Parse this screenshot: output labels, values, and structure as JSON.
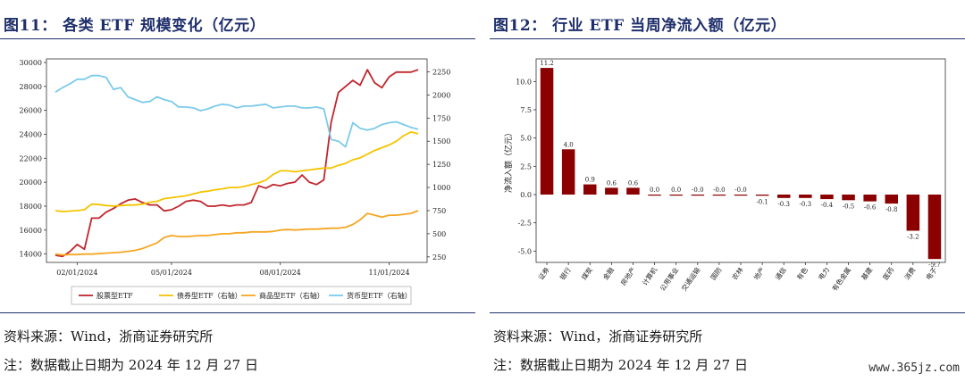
{
  "left": {
    "title": "图11：  各类 ETF 规模变化（亿元）",
    "source": "资料来源：Wind，浙商证券研究所",
    "note": "注：数据截止日期为 2024 年 12 月 27 日",
    "chart_data": {
      "type": "line",
      "title": "各类 ETF 规模变化（亿元）",
      "x_tick_labels": [
        "02/01/2024",
        "05/01/2024",
        "08/01/2024",
        "11/01/2024"
      ],
      "x_tick_index": [
        3,
        16,
        31,
        46
      ],
      "y_left_ticks": [
        14000,
        16000,
        18000,
        20000,
        22000,
        24000,
        26000,
        28000,
        30000
      ],
      "y_left_lim": [
        13300,
        30300
      ],
      "y_right_ticks": [
        250,
        500,
        750,
        1000,
        1250,
        1500,
        1750,
        2000,
        2250
      ],
      "y_right_lim": [
        190,
        2390
      ],
      "legend_position": "bottom",
      "series": [
        {
          "name": "股票型ETF",
          "axis": "left",
          "color": "#c0262d",
          "values": [
            13900,
            13800,
            14200,
            14800,
            14400,
            17000,
            17000,
            17500,
            17800,
            18200,
            18500,
            18600,
            18300,
            18100,
            18100,
            17600,
            17700,
            18000,
            18400,
            18500,
            18400,
            18000,
            18000,
            18100,
            18000,
            18100,
            18100,
            18300,
            19700,
            19500,
            19800,
            19700,
            19900,
            20000,
            20600,
            20000,
            19800,
            20200,
            25000,
            27500,
            28000,
            28500,
            28100,
            29400,
            28300,
            27900,
            28800,
            29200,
            29200,
            29200,
            29400
          ]
        },
        {
          "name": "债券型ETF（右轴）",
          "axis": "right",
          "color": "#f5c400",
          "values": [
            750,
            740,
            745,
            750,
            760,
            820,
            815,
            805,
            800,
            805,
            810,
            810,
            820,
            840,
            850,
            880,
            890,
            900,
            910,
            930,
            950,
            960,
            975,
            985,
            1000,
            1000,
            1010,
            1030,
            1050,
            1080,
            1140,
            1180,
            1180,
            1170,
            1180,
            1190,
            1200,
            1210,
            1210,
            1240,
            1260,
            1300,
            1320,
            1360,
            1400,
            1430,
            1460,
            1500,
            1560,
            1600,
            1580
          ]
        },
        {
          "name": "商品型ETF（右轴）",
          "axis": "right",
          "color": "#f5a623",
          "values": [
            280,
            270,
            275,
            275,
            280,
            280,
            285,
            290,
            295,
            300,
            310,
            320,
            340,
            370,
            400,
            460,
            480,
            470,
            470,
            475,
            480,
            480,
            490,
            500,
            500,
            510,
            510,
            520,
            520,
            520,
            525,
            540,
            545,
            540,
            545,
            550,
            550,
            555,
            560,
            560,
            570,
            600,
            650,
            720,
            700,
            680,
            700,
            700,
            710,
            720,
            750
          ]
        },
        {
          "name": "货币型ETF（右轴）",
          "axis": "right",
          "color": "#7ccbea",
          "values": [
            2030,
            2080,
            2120,
            2170,
            2170,
            2210,
            2210,
            2190,
            2060,
            2080,
            1980,
            1950,
            1920,
            1930,
            1980,
            1950,
            1930,
            1870,
            1870,
            1860,
            1830,
            1850,
            1880,
            1900,
            1890,
            1860,
            1880,
            1880,
            1890,
            1900,
            1860,
            1870,
            1880,
            1880,
            1860,
            1860,
            1870,
            1850,
            1520,
            1500,
            1440,
            1700,
            1640,
            1620,
            1640,
            1680,
            1700,
            1710,
            1680,
            1650,
            1630
          ]
        }
      ]
    }
  },
  "right": {
    "title": "图12：  行业 ETF 当周净流入额（亿元）",
    "source": "资料来源：Wind，浙商证券研究所",
    "note": "注：数据截止日期为 2024 年 12 月 27 日",
    "chart_data": {
      "type": "bar",
      "title": "行业 ETF 当周净流入额（亿元）",
      "ylabel": "净流入额（亿元）",
      "ylim": [
        -6.0,
        12.0
      ],
      "y_ticks": [
        -5.0,
        -2.5,
        0.0,
        2.5,
        5.0,
        7.5,
        10.0
      ],
      "y_tick_labels": [
        "-5.0",
        "-2.5",
        "0.0",
        "2.5",
        "5.0",
        "7.5",
        "10.0"
      ],
      "bar_color": "#8b0000",
      "categories": [
        "证券",
        "银行",
        "煤炭",
        "金融",
        "房地产",
        "计算机",
        "公用事业",
        "交通运输",
        "国防",
        "农林",
        "地产",
        "通信",
        "有色",
        "电力",
        "有色金属",
        "基建",
        "医药",
        "消费",
        "电子"
      ],
      "values": [
        11.2,
        4.0,
        0.9,
        0.6,
        0.6,
        0.0,
        0.0,
        -0.0,
        -0.0,
        -0.0,
        -0.1,
        -0.3,
        -0.3,
        -0.4,
        -0.5,
        -0.6,
        -0.8,
        -3.2,
        -5.7
      ],
      "value_labels": [
        "11.2",
        "4.0",
        "0.9",
        "0.6",
        "0.6",
        "0.0",
        "0.0",
        "-0.0",
        "-0.0",
        "-0.0",
        "-0.1",
        "-0.3",
        "-0.3",
        "-0.4",
        "-0.5",
        "-0.6",
        "-0.8",
        "-3.2",
        "-5.7"
      ]
    }
  },
  "watermark": "www.365jz.com"
}
